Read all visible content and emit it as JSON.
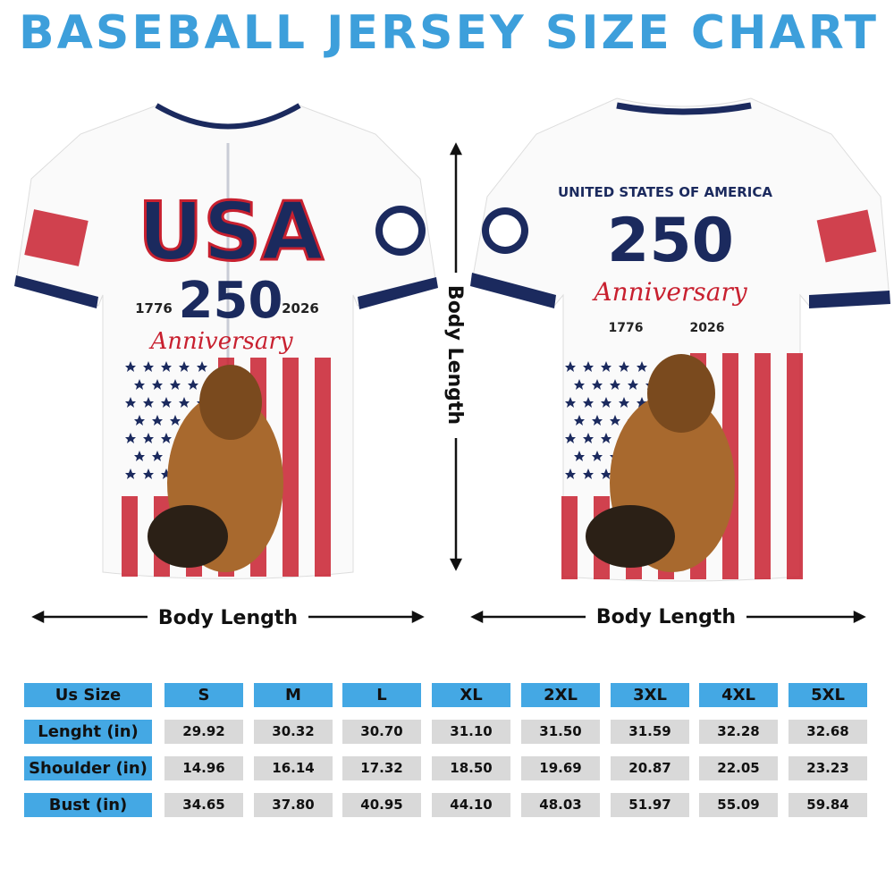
{
  "title": "BASEBALL JERSEY SIZE CHART",
  "front": {
    "logo": "USA",
    "number": "250",
    "year_start": "1776",
    "year_end": "2026",
    "script": "Anniversary"
  },
  "back": {
    "heading": "UNITED STATES OF AMERICA",
    "number": "250",
    "script": "Anniversary",
    "year_start": "1776",
    "year_end": "2026"
  },
  "measure_labels": {
    "front_width": "Body Length",
    "back_height": "Body Length",
    "back_width": "Body Length"
  },
  "table": {
    "header": [
      "Us Size",
      "S",
      "M",
      "L",
      "XL",
      "2XL",
      "3XL",
      "4XL",
      "5XL"
    ],
    "rows": [
      [
        "Lenght (in)",
        "29.92",
        "30.32",
        "30.70",
        "31.10",
        "31.50",
        "31.59",
        "32.28",
        "32.68"
      ],
      [
        "Shoulder (in)",
        "14.96",
        "16.14",
        "17.32",
        "18.50",
        "19.69",
        "20.87",
        "22.05",
        "23.23"
      ],
      [
        "Bust (in)",
        "34.65",
        "37.80",
        "40.95",
        "44.10",
        "48.03",
        "51.97",
        "55.09",
        "59.84"
      ]
    ]
  }
}
